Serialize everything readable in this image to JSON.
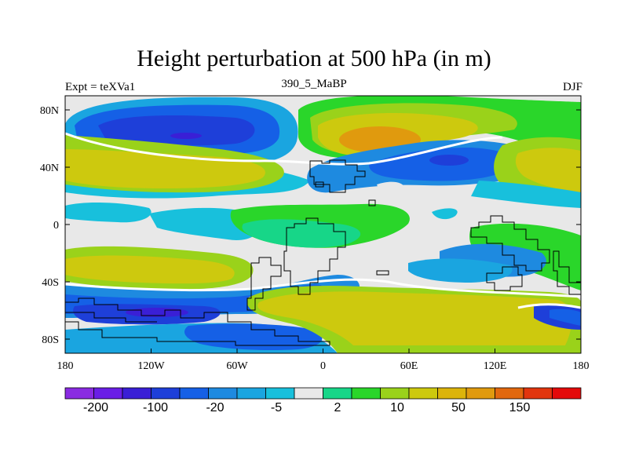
{
  "title": "Height perturbation at 500 hPa (in m)",
  "subtitle": {
    "left": "Expt = teXVa1",
    "center": "390_5_MaBP",
    "right": "DJF"
  },
  "axes": {
    "y_ticks": [
      "80N",
      "40N",
      "0",
      "40S",
      "80S"
    ],
    "x_ticks": [
      "180",
      "120W",
      "60W",
      "0",
      "60E",
      "120E",
      "180"
    ]
  },
  "colorbar": {
    "colors": [
      "#8a2be2",
      "#6a1ee6",
      "#3a1fd6",
      "#1e3fd9",
      "#1560e6",
      "#1e8ae0",
      "#1aa5e0",
      "#18c0dc",
      "#e8e8e8",
      "#17d688",
      "#2ad62a",
      "#9ad21a",
      "#cdc90e",
      "#dcb40a",
      "#e09a0e",
      "#e2680e",
      "#e2350e",
      "#e40a0a"
    ],
    "labels": [
      "-200",
      "-100",
      "-20",
      "-5",
      "2",
      "10",
      "50",
      "150"
    ]
  },
  "palette": {
    "neutral": "#e8e8e8",
    "blue_deep": "#1e3fd9",
    "blue": "#1560e6",
    "blue_mid": "#1e8ae0",
    "cyan": "#18c0dc",
    "green_cyan": "#17d688",
    "green": "#2ad62a",
    "yellow_green": "#9ad21a",
    "olive": "#cdc90e",
    "gold": "#dcb40a",
    "orange": "#e09a0e",
    "purple": "#3a1fd6"
  }
}
